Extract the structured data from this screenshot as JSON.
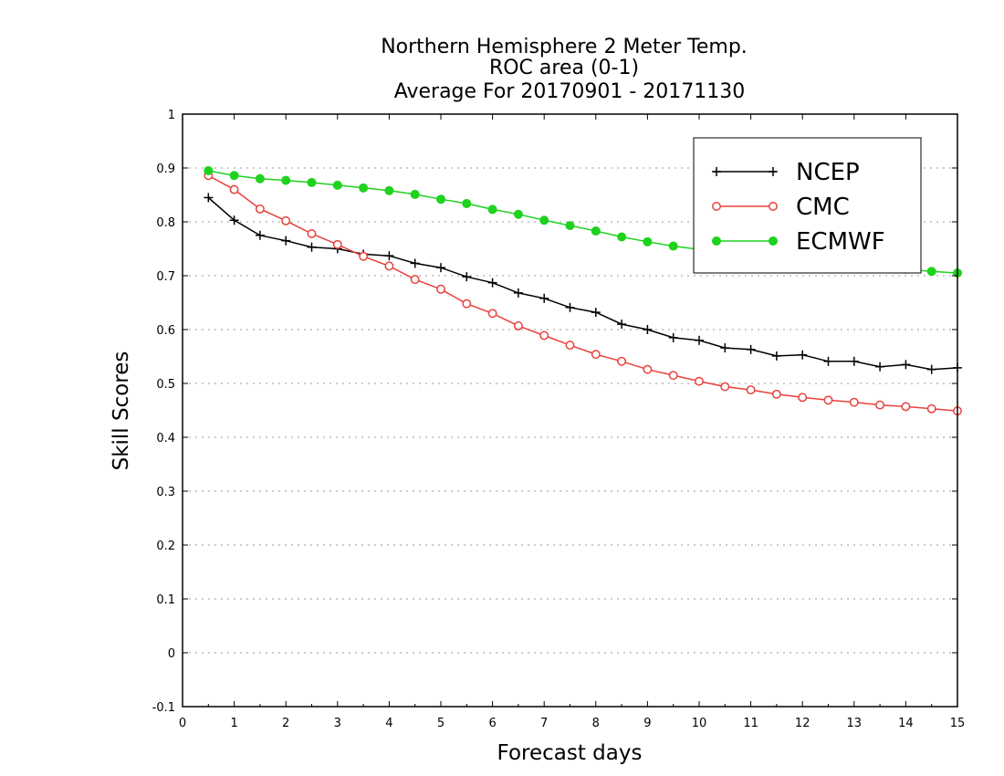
{
  "chart_data": {
    "type": "line",
    "title": [
      "Northern Hemisphere 2 Meter Temp.",
      "ROC area (0-1)",
      "Average For 20170901 - 20171130"
    ],
    "xlabel": "Forecast days",
    "ylabel": "Skill Scores",
    "xlim": [
      0,
      15
    ],
    "ylim": [
      -0.1,
      1
    ],
    "xticks": [
      0,
      1,
      2,
      3,
      4,
      5,
      6,
      7,
      8,
      9,
      10,
      11,
      12,
      13,
      14,
      15
    ],
    "yticks": [
      -0.1,
      0,
      0.1,
      0.2,
      0.3,
      0.4,
      0.5,
      0.6,
      0.7,
      0.8,
      0.9,
      1
    ],
    "ytick_labels": [
      "-0.1",
      "0",
      "0.1",
      "0.2",
      "0.3",
      "0.4",
      "0.5",
      "0.6",
      "0.7",
      "0.8",
      "0.9",
      "1"
    ],
    "grid": true,
    "legend_position": "top-right",
    "x": [
      0.5,
      1,
      1.5,
      2,
      2.5,
      3,
      3.5,
      4,
      4.5,
      5,
      5.5,
      6,
      6.5,
      7,
      7.5,
      8,
      8.5,
      9,
      9.5,
      10,
      10.5,
      11,
      11.5,
      12,
      12.5,
      13,
      13.5,
      14,
      14.5,
      15
    ],
    "series": [
      {
        "name": "NCEP",
        "color": "#000000",
        "marker": "plus",
        "values": [
          0.845,
          0.803,
          0.775,
          0.765,
          0.753,
          0.75,
          0.74,
          0.737,
          0.723,
          0.715,
          0.698,
          0.687,
          0.668,
          0.658,
          0.641,
          0.632,
          0.61,
          0.6,
          0.585,
          0.58,
          0.566,
          0.563,
          0.551,
          0.553,
          0.541,
          0.541,
          0.531,
          0.535,
          0.526,
          0.529
        ]
      },
      {
        "name": "CMC",
        "color": "#e8413c",
        "marker": "open-circle",
        "values": [
          0.886,
          0.86,
          0.824,
          0.802,
          0.778,
          0.758,
          0.736,
          0.718,
          0.693,
          0.675,
          0.648,
          0.63,
          0.607,
          0.589,
          0.571,
          0.554,
          0.541,
          0.526,
          0.515,
          0.504,
          0.494,
          0.488,
          0.48,
          0.474,
          0.469,
          0.465,
          0.46,
          0.457,
          0.453,
          0.449
        ]
      },
      {
        "name": "ECMWF",
        "color": "#1ed21e",
        "marker": "filled-circle",
        "values": [
          0.895,
          0.886,
          0.88,
          0.877,
          0.873,
          0.868,
          0.863,
          0.858,
          0.851,
          0.842,
          0.834,
          0.823,
          0.814,
          0.803,
          0.793,
          0.783,
          0.772,
          0.763,
          0.755,
          0.749,
          0.743,
          0.737,
          0.732,
          0.728,
          0.723,
          0.719,
          0.715,
          0.712,
          0.708,
          0.705
        ]
      }
    ]
  }
}
